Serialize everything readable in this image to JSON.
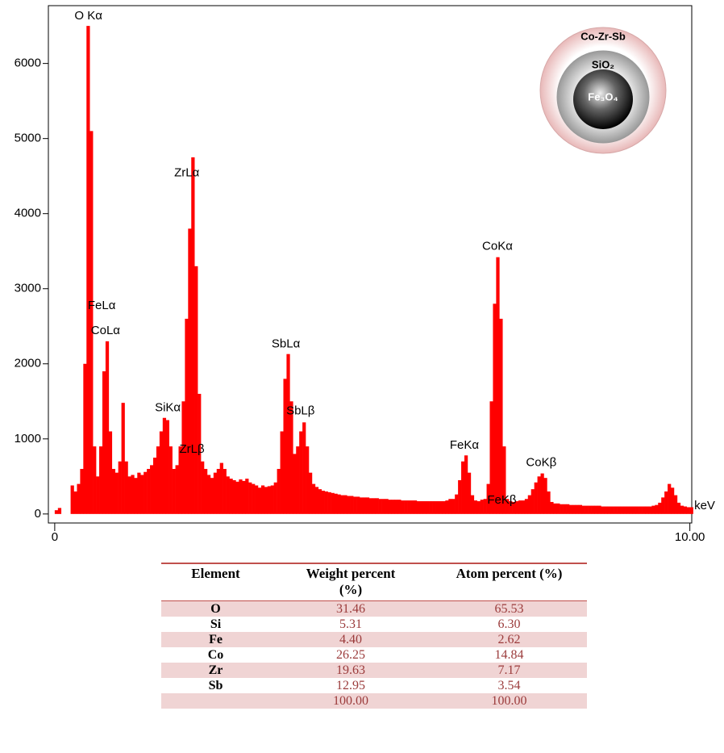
{
  "chart_data": {
    "type": "bar",
    "color": "#ff0000",
    "x_label": "keV",
    "xlim": [
      -0.1,
      10.03
    ],
    "ylim": [
      -120,
      6770
    ],
    "xticks": [
      0,
      {
        "value": 10,
        "label": "10.00"
      }
    ],
    "yticks": [
      0,
      1000,
      2000,
      3000,
      4000,
      5000,
      6000
    ],
    "x": [
      0,
      0.05,
      0.1,
      0.15,
      0.2,
      0.25,
      0.3,
      0.35,
      0.4,
      0.45,
      0.5,
      0.55,
      0.6,
      0.65,
      0.7,
      0.75,
      0.8,
      0.85,
      0.9,
      0.95,
      1,
      1.05,
      1.1,
      1.15,
      1.2,
      1.25,
      1.3,
      1.35,
      1.4,
      1.45,
      1.5,
      1.55,
      1.6,
      1.65,
      1.7,
      1.75,
      1.8,
      1.85,
      1.9,
      1.95,
      2,
      2.05,
      2.1,
      2.15,
      2.2,
      2.25,
      2.3,
      2.35,
      2.4,
      2.45,
      2.5,
      2.55,
      2.6,
      2.65,
      2.7,
      2.75,
      2.8,
      2.85,
      2.9,
      2.95,
      3,
      3.05,
      3.1,
      3.15,
      3.2,
      3.25,
      3.3,
      3.35,
      3.4,
      3.45,
      3.5,
      3.55,
      3.6,
      3.65,
      3.7,
      3.75,
      3.8,
      3.85,
      3.9,
      3.95,
      4,
      4.05,
      4.1,
      4.15,
      4.2,
      4.25,
      4.3,
      4.35,
      4.4,
      4.45,
      4.5,
      4.55,
      4.6,
      4.65,
      4.7,
      4.75,
      4.8,
      4.85,
      4.9,
      4.95,
      5,
      5.05,
      5.1,
      5.15,
      5.2,
      5.25,
      5.3,
      5.35,
      5.4,
      5.45,
      5.5,
      5.55,
      5.6,
      5.65,
      5.7,
      5.75,
      5.8,
      5.85,
      5.9,
      5.95,
      6,
      6.05,
      6.1,
      6.15,
      6.2,
      6.25,
      6.3,
      6.35,
      6.4,
      6.45,
      6.5,
      6.55,
      6.6,
      6.65,
      6.7,
      6.75,
      6.8,
      6.85,
      6.9,
      6.95,
      7,
      7.05,
      7.1,
      7.15,
      7.2,
      7.25,
      7.3,
      7.35,
      7.4,
      7.45,
      7.5,
      7.55,
      7.6,
      7.65,
      7.7,
      7.75,
      7.8,
      7.85,
      7.9,
      7.95,
      8,
      8.05,
      8.1,
      8.15,
      8.2,
      8.25,
      8.3,
      8.35,
      8.4,
      8.45,
      8.5,
      8.55,
      8.6,
      8.65,
      8.7,
      8.75,
      8.8,
      8.85,
      8.9,
      8.95,
      9,
      9.05,
      9.1,
      9.15,
      9.2,
      9.25,
      9.3,
      9.35,
      9.4,
      9.45,
      9.5,
      9.55,
      9.6,
      9.65,
      9.7,
      9.75,
      9.8,
      9.85,
      9.9,
      9.95,
      10
    ],
    "values": [
      50,
      80,
      0,
      0,
      0,
      380,
      300,
      400,
      600,
      2000,
      6500,
      5100,
      900,
      500,
      900,
      1900,
      2300,
      1100,
      600,
      550,
      700,
      1480,
      700,
      500,
      520,
      480,
      550,
      520,
      560,
      600,
      650,
      750,
      900,
      1100,
      1280,
      1250,
      900,
      600,
      650,
      900,
      1500,
      2600,
      3800,
      4750,
      3300,
      1600,
      700,
      600,
      520,
      480,
      550,
      600,
      680,
      600,
      500,
      470,
      450,
      430,
      460,
      440,
      470,
      420,
      400,
      380,
      350,
      380,
      360,
      370,
      380,
      420,
      600,
      1100,
      1800,
      2130,
      1500,
      800,
      900,
      1100,
      1220,
      900,
      550,
      400,
      360,
      330,
      310,
      300,
      290,
      280,
      270,
      260,
      250,
      250,
      240,
      240,
      230,
      230,
      220,
      220,
      220,
      210,
      210,
      210,
      200,
      200,
      200,
      190,
      190,
      190,
      190,
      180,
      180,
      180,
      180,
      180,
      170,
      170,
      170,
      170,
      170,
      170,
      170,
      170,
      170,
      180,
      200,
      200,
      260,
      450,
      700,
      780,
      550,
      250,
      180,
      170,
      190,
      200,
      400,
      1500,
      2800,
      3420,
      2600,
      900,
      200,
      170,
      160,
      170,
      180,
      180,
      200,
      250,
      330,
      420,
      500,
      540,
      480,
      300,
      160,
      140,
      140,
      130,
      130,
      130,
      120,
      120,
      120,
      120,
      110,
      110,
      110,
      110,
      110,
      110,
      100,
      100,
      100,
      100,
      100,
      100,
      100,
      100,
      100,
      100,
      100,
      100,
      100,
      100,
      100,
      100,
      110,
      120,
      150,
      220,
      300,
      400,
      350,
      250,
      150,
      110,
      100,
      90,
      90
    ],
    "annotations": [
      {
        "text": "O Kα",
        "x": 0.53,
        "y": 6630
      },
      {
        "text": "ZrLα",
        "x": 2.08,
        "y": 4540
      },
      {
        "text": "FeLα",
        "x": 0.74,
        "y": 2770
      },
      {
        "text": "CoLα",
        "x": 0.8,
        "y": 2440
      },
      {
        "text": "SiKα",
        "x": 1.78,
        "y": 1410
      },
      {
        "text": "ZrLβ",
        "x": 2.16,
        "y": 860
      },
      {
        "text": "SbLα",
        "x": 3.64,
        "y": 2260
      },
      {
        "text": "SbLβ",
        "x": 3.87,
        "y": 1370
      },
      {
        "text": "FeKα",
        "x": 6.45,
        "y": 910
      },
      {
        "text": "FeKβ",
        "x": 7.04,
        "y": 180
      },
      {
        "text": "CoKα",
        "x": 6.97,
        "y": 3560
      },
      {
        "text": "CoKβ",
        "x": 7.66,
        "y": 680
      }
    ]
  },
  "inset": {
    "shell": "Co-Zr-Sb",
    "middle": "SiO₂",
    "core": "Fe₃O₄"
  },
  "table": {
    "header": [
      "Element",
      "Weight percent (%)",
      "Atom percent (%)"
    ],
    "rows": [
      [
        "O",
        "31.46",
        "65.53"
      ],
      [
        "Si",
        "5.31",
        "6.30"
      ],
      [
        "Fe",
        "4.40",
        "2.62"
      ],
      [
        "Co",
        "26.25",
        "14.84"
      ],
      [
        "Zr",
        "19.63",
        "7.17"
      ],
      [
        "Sb",
        "12.95",
        "3.54"
      ]
    ],
    "total": [
      "100.00",
      "100.00"
    ]
  }
}
